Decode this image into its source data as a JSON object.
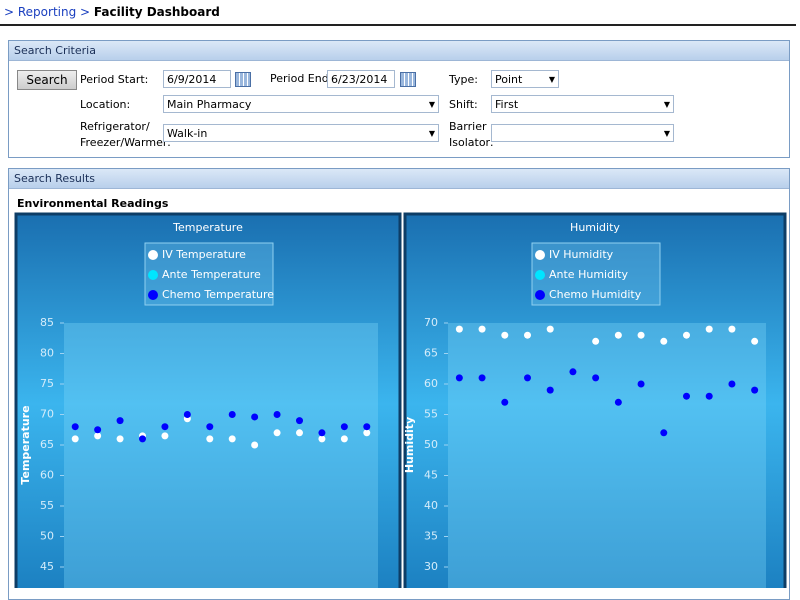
{
  "breadcrumb": {
    "link": "> Reporting >",
    "current": "Facility Dashboard"
  },
  "search_criteria": {
    "title": "Search Criteria",
    "search_button": "Search",
    "period_start": {
      "label": "Period Start:",
      "value": "6/9/2014"
    },
    "period_end": {
      "label": "Period End:",
      "value": "6/23/2014"
    },
    "type": {
      "label": "Type:",
      "value": "Point"
    },
    "location": {
      "label": "Location:",
      "value": "Main Pharmacy"
    },
    "shift": {
      "label": "Shift:",
      "value": "First"
    },
    "unit": {
      "label_line1": "Refrigerator/",
      "label_line2": "Freezer/Warmer:",
      "value": "Walk-in"
    },
    "barrier": {
      "label_line1": "Barrier",
      "label_line2": "Isolator:"
    }
  },
  "search_results": {
    "title": "Search Results",
    "subtitle": "Environmental Readings"
  },
  "chart_data": [
    {
      "type": "scatter",
      "title": "Temperature",
      "y_label": "Temperature",
      "categories": [
        null,
        null,
        null,
        null,
        null,
        null,
        null,
        null,
        null,
        null,
        null,
        null,
        null,
        null
      ],
      "ylim": [
        45,
        85
      ],
      "yticks": [
        45,
        50,
        55,
        60,
        65,
        70,
        75,
        80,
        85
      ],
      "series": [
        {
          "name": "IV Temperature",
          "color": "#ffffff",
          "values": [
            66,
            66.5,
            66,
            66.5,
            66.5,
            69.3,
            66,
            66,
            65,
            67,
            67,
            66,
            66,
            67
          ]
        },
        {
          "name": "Ante Temperature",
          "color": "#00e5ff",
          "values": [
            null,
            null,
            null,
            null,
            null,
            null,
            null,
            null,
            null,
            null,
            null,
            null,
            null,
            null
          ]
        },
        {
          "name": "Chemo Temperature",
          "color": "#0000ff",
          "values": [
            68,
            67.5,
            69,
            66,
            68,
            70,
            68,
            70,
            69.6,
            70,
            69,
            67,
            68,
            68
          ]
        }
      ]
    },
    {
      "type": "scatter",
      "title": "Humidity",
      "y_label": "Humidity",
      "categories": [
        null,
        null,
        null,
        null,
        null,
        null,
        null,
        null,
        null,
        null,
        null,
        null,
        null,
        null
      ],
      "ylim": [
        30,
        70
      ],
      "yticks": [
        30,
        35,
        40,
        45,
        50,
        55,
        60,
        65,
        70
      ],
      "series": [
        {
          "name": "IV Humidity",
          "color": "#ffffff",
          "values": [
            69,
            69,
            68,
            68,
            69,
            null,
            67,
            68,
            68,
            67,
            68,
            69,
            69,
            67
          ]
        },
        {
          "name": "Ante Humidity",
          "color": "#00e5ff",
          "values": [
            null,
            null,
            null,
            null,
            null,
            null,
            null,
            null,
            null,
            null,
            null,
            null,
            null,
            null
          ]
        },
        {
          "name": "Chemo Humidity",
          "color": "#0000ff",
          "values": [
            61,
            61,
            57,
            61,
            59,
            62,
            61,
            57,
            60,
            52,
            58,
            58,
            60,
            59
          ]
        }
      ]
    }
  ]
}
